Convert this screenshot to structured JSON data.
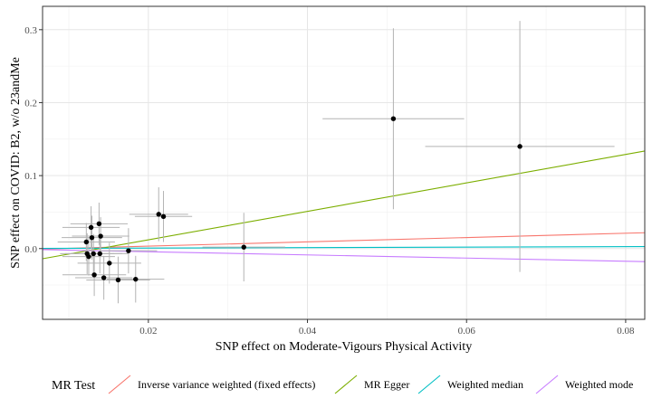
{
  "chart_data": {
    "type": "scatter",
    "xlabel": "SNP effect on Moderate-Vigours Physical Activity",
    "ylabel": "SNP effect on COVID: B2, w/o 23andMe",
    "xlim": [
      0.0067,
      0.0824
    ],
    "ylim": [
      -0.097,
      0.332
    ],
    "x_ticks": [
      0.02,
      0.04,
      0.06,
      0.08
    ],
    "x_tick_labels": [
      "0.02",
      "0.04",
      "0.06",
      "0.08"
    ],
    "y_ticks": [
      0.0,
      0.1,
      0.2,
      0.3
    ],
    "y_tick_labels": [
      "0.0",
      "0.1",
      "0.2",
      "0.3"
    ],
    "grid": true,
    "legend": {
      "title": "MR Test",
      "position": "bottom",
      "entries": [
        {
          "label": "Inverse variance weighted (fixed effects)",
          "color": "#F8766D"
        },
        {
          "label": "MR Egger",
          "color": "#7CAE00"
        },
        {
          "label": "Weighted median",
          "color": "#00BFC4"
        },
        {
          "label": "Weighted mode",
          "color": "#C77CFF"
        }
      ]
    },
    "lines": [
      {
        "label": "Inverse variance weighted (fixed effects)",
        "color": "#F8766D",
        "intercept": -0.0026,
        "slope": 0.295
      },
      {
        "label": "MR Egger",
        "color": "#7CAE00",
        "intercept": -0.027,
        "slope": 1.95
      },
      {
        "label": "Weighted median",
        "color": "#00BFC4",
        "intercept": 0.0,
        "slope": 0.0329
      },
      {
        "label": "Weighted mode",
        "color": "#C77CFF",
        "intercept": 0.0,
        "slope": -0.217
      }
    ],
    "points": [
      {
        "x": 0.0122,
        "y": 0.009,
        "xe": 0.0036,
        "ye": 0.026
      },
      {
        "x": 0.0123,
        "y": -0.007,
        "xe": 0.0034,
        "ye": 0.028
      },
      {
        "x": 0.0125,
        "y": -0.011,
        "xe": 0.0033,
        "ye": 0.026
      },
      {
        "x": 0.0128,
        "y": 0.029,
        "xe": 0.0036,
        "ye": 0.029
      },
      {
        "x": 0.0129,
        "y": 0.015,
        "xe": 0.0038,
        "ye": 0.03
      },
      {
        "x": 0.0131,
        "y": -0.007,
        "xe": 0.0036,
        "ye": 0.027
      },
      {
        "x": 0.0132,
        "y": -0.036,
        "xe": 0.004,
        "ye": 0.029
      },
      {
        "x": 0.0138,
        "y": 0.034,
        "xe": 0.0036,
        "ye": 0.029
      },
      {
        "x": 0.0139,
        "y": -0.007,
        "xe": 0.0036,
        "ye": 0.027
      },
      {
        "x": 0.014,
        "y": 0.017,
        "xe": 0.0036,
        "ye": 0.026
      },
      {
        "x": 0.0144,
        "y": -0.04,
        "xe": 0.0036,
        "ye": 0.03
      },
      {
        "x": 0.0151,
        "y": -0.02,
        "xe": 0.004,
        "ye": 0.028
      },
      {
        "x": 0.0162,
        "y": -0.043,
        "xe": 0.004,
        "ye": 0.032
      },
      {
        "x": 0.0175,
        "y": -0.003,
        "xe": 0.0036,
        "ye": 0.031
      },
      {
        "x": 0.0184,
        "y": -0.042,
        "xe": 0.0036,
        "ye": 0.032
      },
      {
        "x": 0.0213,
        "y": 0.047,
        "xe": 0.0037,
        "ye": 0.037
      },
      {
        "x": 0.0219,
        "y": 0.044,
        "xe": 0.0036,
        "ye": 0.035
      },
      {
        "x": 0.032,
        "y": 0.002,
        "xe": 0.0052,
        "ye": 0.047
      },
      {
        "x": 0.0508,
        "y": 0.178,
        "xe": 0.0089,
        "ye": 0.124
      },
      {
        "x": 0.0667,
        "y": 0.14,
        "xe": 0.0119,
        "ye": 0.172
      }
    ]
  }
}
